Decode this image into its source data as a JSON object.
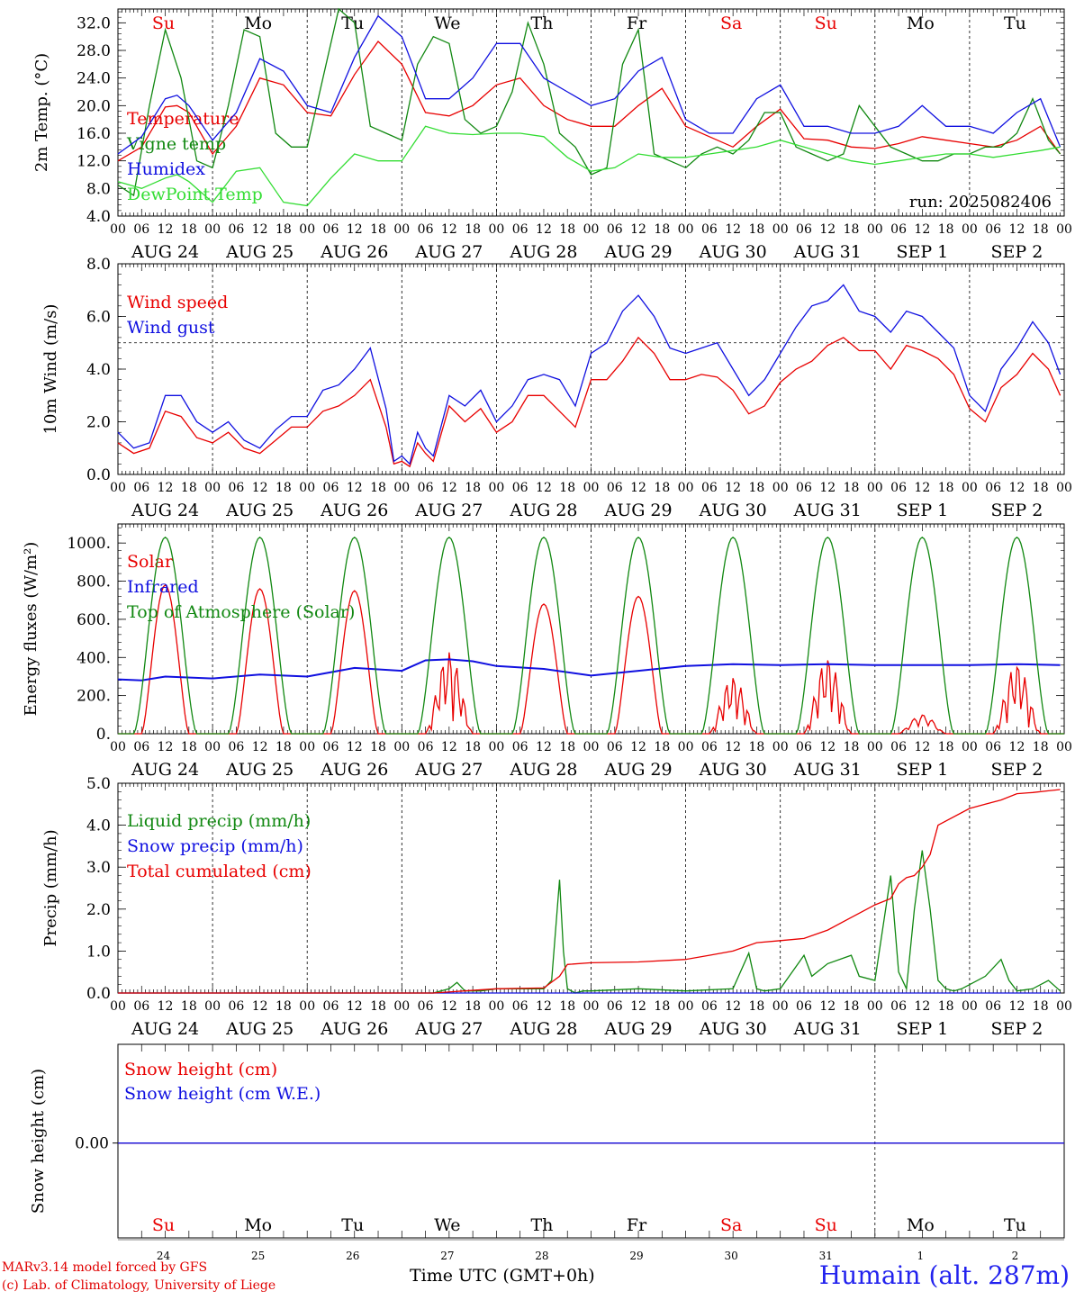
{
  "colors": {
    "red": "#e80000",
    "blue": "#1010e0",
    "green": "#118811",
    "lightgreen": "#33dd33",
    "black": "#000000"
  },
  "footer": {
    "model": "MARv3.14 model forced by GFS",
    "lab": "(c) Lab. of Climatology, University of Liege",
    "time_label": "Time UTC (GMT+0h)",
    "station": "Humain (alt. 287m)"
  },
  "axes": {
    "hour_ticks": [
      "00",
      "06",
      "12",
      "18"
    ],
    "end_tick": "00",
    "date_labels": [
      "AUG 24",
      "AUG 25",
      "AUG 26",
      "AUG 27",
      "AUG 28",
      "AUG 29",
      "AUG 30",
      "AUG 31",
      "SEP  1",
      "SEP  2"
    ],
    "weekdays": [
      "Su",
      "Mo",
      "Tu",
      "We",
      "Th",
      "Fr",
      "Sa",
      "Su",
      "Mo",
      "Tu"
    ],
    "weekday_colors": [
      "red",
      "black",
      "black",
      "black",
      "black",
      "black",
      "red",
      "red",
      "black",
      "black"
    ],
    "day_numbers": [
      "24",
      "25",
      "26",
      "27",
      "28",
      "29",
      "30",
      "31",
      "1",
      "2"
    ]
  },
  "chart_data": [
    {
      "type": "line",
      "id": "temp",
      "ylabel": "2m Temp. (°C)",
      "ylim": [
        4,
        34
      ],
      "yticks": [
        "4.0",
        "8.0",
        "12.0",
        "16.0",
        "20.0",
        "24.0",
        "28.0",
        "32.0"
      ],
      "run": "run: 2025082406",
      "x_unit": "hours since AUG 24 00 UTC",
      "series": [
        {
          "name": "Temperature",
          "color": "red",
          "x": [
            0,
            6,
            12,
            15,
            18,
            24,
            30,
            36,
            42,
            48,
            54,
            60,
            66,
            72,
            78,
            84,
            90,
            96,
            102,
            108,
            114,
            120,
            126,
            132,
            138,
            144,
            150,
            156,
            162,
            168,
            174,
            180,
            186,
            192,
            198,
            204,
            210,
            216,
            222,
            228,
            234,
            239
          ],
          "y": [
            12,
            14,
            19.8,
            20,
            19,
            13,
            17,
            24,
            23,
            19,
            18.5,
            24.5,
            29.3,
            26,
            19,
            18.5,
            20,
            23,
            24,
            20,
            18,
            17,
            17,
            20,
            22.5,
            17,
            15.5,
            14,
            17,
            19.5,
            15.2,
            15,
            14,
            13.8,
            14.5,
            15.5,
            15,
            14.5,
            14,
            15,
            17,
            13
          ]
        },
        {
          "name": "Vigne temp",
          "color": "green",
          "x": [
            0,
            4,
            8,
            12,
            16,
            20,
            24,
            28,
            32,
            36,
            40,
            44,
            48,
            52,
            56,
            60,
            64,
            68,
            72,
            76,
            80,
            84,
            88,
            92,
            96,
            100,
            104,
            108,
            112,
            116,
            120,
            124,
            128,
            132,
            136,
            140,
            144,
            148,
            152,
            156,
            160,
            164,
            168,
            172,
            176,
            180,
            184,
            188,
            192,
            196,
            200,
            204,
            208,
            212,
            216,
            220,
            224,
            228,
            232,
            236,
            239
          ],
          "y": [
            8.5,
            7,
            20,
            31,
            24,
            12,
            11,
            20,
            31,
            30,
            16,
            14,
            14,
            24,
            34,
            32,
            17,
            16,
            15,
            26,
            30,
            29,
            18,
            16,
            17,
            22,
            32,
            26,
            16,
            14,
            10,
            11,
            26,
            31,
            13,
            12,
            11,
            13,
            14,
            13,
            15,
            19,
            19,
            14,
            13,
            12,
            13,
            20,
            17,
            14,
            13,
            12,
            12,
            13,
            13,
            14,
            14,
            16,
            21,
            15,
            13
          ]
        },
        {
          "name": "Humidex",
          "color": "blue",
          "x": [
            0,
            6,
            12,
            15,
            18,
            24,
            30,
            36,
            42,
            48,
            54,
            60,
            66,
            72,
            78,
            84,
            90,
            96,
            102,
            108,
            114,
            120,
            126,
            132,
            138,
            144,
            150,
            156,
            162,
            168,
            174,
            180,
            186,
            192,
            198,
            204,
            210,
            216,
            222,
            228,
            234,
            239
          ],
          "y": [
            13,
            15.5,
            21,
            21.5,
            20,
            15,
            19,
            26.8,
            25,
            20,
            19,
            27,
            33,
            30,
            21,
            21,
            24,
            29,
            29,
            24,
            22,
            20,
            21,
            25,
            27,
            18,
            16,
            16,
            21,
            23,
            17,
            17,
            16,
            16,
            17,
            20,
            17,
            17,
            16,
            19,
            21,
            14
          ]
        },
        {
          "name": "DewPoint Temp",
          "color": "lightgreen",
          "x": [
            0,
            6,
            12,
            15,
            18,
            24,
            30,
            36,
            42,
            48,
            54,
            60,
            66,
            72,
            78,
            84,
            90,
            96,
            102,
            108,
            114,
            120,
            126,
            132,
            138,
            144,
            150,
            156,
            162,
            168,
            174,
            180,
            186,
            192,
            198,
            204,
            210,
            216,
            222,
            228,
            234,
            239
          ],
          "y": [
            9,
            8,
            9.5,
            10,
            9,
            6,
            10.5,
            11,
            6,
            5.5,
            9.5,
            13,
            12,
            12,
            17,
            16,
            15.8,
            16,
            16,
            15.5,
            12.5,
            10.5,
            11,
            13,
            12.5,
            12.5,
            13,
            13.5,
            14,
            15,
            14,
            13,
            12,
            11.5,
            12,
            12.5,
            13,
            13,
            12.5,
            13,
            13.5,
            14
          ]
        }
      ]
    },
    {
      "type": "line",
      "id": "wind",
      "ylabel": "10m Wind (m/s)",
      "ylim": [
        0,
        8
      ],
      "yticks": [
        "0.0",
        "2.0",
        "4.0",
        "6.0",
        "8.0"
      ],
      "ref_line": 5,
      "x_unit": "hours since AUG 24 00 UTC",
      "series": [
        {
          "name": "Wind speed",
          "color": "red",
          "x": [
            0,
            4,
            8,
            12,
            16,
            20,
            24,
            28,
            32,
            36,
            40,
            44,
            48,
            52,
            56,
            60,
            64,
            68,
            70,
            72,
            74,
            76,
            78,
            80,
            84,
            88,
            92,
            96,
            100,
            104,
            108,
            112,
            116,
            120,
            124,
            128,
            132,
            136,
            140,
            144,
            148,
            152,
            156,
            160,
            164,
            168,
            172,
            176,
            180,
            184,
            188,
            192,
            196,
            200,
            204,
            208,
            212,
            216,
            220,
            224,
            228,
            232,
            236,
            239
          ],
          "y": [
            1.2,
            0.8,
            1.0,
            2.4,
            2.2,
            1.4,
            1.2,
            1.6,
            1.0,
            0.8,
            1.3,
            1.8,
            1.8,
            2.4,
            2.6,
            3.0,
            3.6,
            1.8,
            0.4,
            0.5,
            0.3,
            1.2,
            0.8,
            0.5,
            2.6,
            2.0,
            2.5,
            1.6,
            2.0,
            3.0,
            3.0,
            2.4,
            1.8,
            3.6,
            3.6,
            4.3,
            5.2,
            4.6,
            3.6,
            3.6,
            3.8,
            3.7,
            3.2,
            2.3,
            2.6,
            3.5,
            4.0,
            4.3,
            4.9,
            5.2,
            4.7,
            4.7,
            4.0,
            4.9,
            4.7,
            4.4,
            3.8,
            2.5,
            2.0,
            3.3,
            3.8,
            4.6,
            4.0,
            3.0
          ]
        },
        {
          "name": "Wind gust",
          "color": "blue",
          "x": [
            0,
            4,
            8,
            12,
            16,
            20,
            24,
            28,
            32,
            36,
            40,
            44,
            48,
            52,
            56,
            60,
            64,
            68,
            70,
            72,
            74,
            76,
            78,
            80,
            84,
            88,
            92,
            96,
            100,
            104,
            108,
            112,
            116,
            120,
            124,
            128,
            132,
            136,
            140,
            144,
            148,
            152,
            156,
            160,
            164,
            168,
            172,
            176,
            180,
            184,
            188,
            192,
            196,
            200,
            204,
            208,
            212,
            216,
            220,
            224,
            228,
            232,
            236,
            239
          ],
          "y": [
            1.6,
            1.0,
            1.2,
            3.0,
            3.0,
            2.0,
            1.6,
            2.0,
            1.3,
            1.0,
            1.7,
            2.2,
            2.2,
            3.2,
            3.4,
            4.0,
            4.8,
            2.5,
            0.5,
            0.7,
            0.4,
            1.6,
            1.0,
            0.7,
            3.0,
            2.6,
            3.2,
            2.0,
            2.6,
            3.6,
            3.8,
            3.6,
            2.6,
            4.6,
            5.0,
            6.2,
            6.8,
            6.0,
            4.8,
            4.6,
            4.8,
            5.0,
            4.0,
            3.0,
            3.6,
            4.6,
            5.6,
            6.4,
            6.6,
            7.2,
            6.2,
            6.0,
            5.4,
            6.2,
            6.0,
            5.4,
            4.8,
            3.0,
            2.4,
            4.0,
            4.8,
            5.8,
            5.0,
            3.8
          ]
        }
      ]
    },
    {
      "type": "line",
      "id": "energy",
      "ylabel": "Energy fluxes (W/m²)",
      "ylim": [
        0,
        1100
      ],
      "yticks": [
        "0.",
        "200.",
        "400.",
        "600.",
        "800.",
        "1000."
      ],
      "x_unit": "hours since AUG 24 00 UTC",
      "series": [
        {
          "name": "Solar",
          "color": "red",
          "peaks": [
            {
              "day": 0,
              "max": 780,
              "shape": "smooth"
            },
            {
              "day": 1,
              "max": 760,
              "shape": "smooth"
            },
            {
              "day": 2,
              "max": 750,
              "shape": "smooth"
            },
            {
              "day": 3,
              "max": 430,
              "shape": "broken"
            },
            {
              "day": 4,
              "max": 680,
              "shape": "smooth"
            },
            {
              "day": 5,
              "max": 720,
              "shape": "smooth"
            },
            {
              "day": 6,
              "max": 300,
              "shape": "broken"
            },
            {
              "day": 7,
              "max": 400,
              "shape": "broken"
            },
            {
              "day": 8,
              "max": 100,
              "shape": "low"
            },
            {
              "day": 9,
              "max": 370,
              "shape": "broken"
            }
          ]
        },
        {
          "name": "Infrared",
          "color": "blue",
          "x": [
            0,
            6,
            12,
            24,
            36,
            48,
            60,
            72,
            78,
            84,
            90,
            96,
            108,
            120,
            132,
            144,
            156,
            168,
            180,
            192,
            204,
            216,
            228,
            239
          ],
          "y": [
            285,
            280,
            300,
            290,
            310,
            300,
            345,
            330,
            385,
            390,
            380,
            355,
            340,
            305,
            330,
            355,
            365,
            360,
            365,
            360,
            360,
            360,
            365,
            360
          ]
        },
        {
          "name": "Top of Atmosphere (Solar)",
          "color": "green",
          "toa_max": 1030
        }
      ]
    },
    {
      "type": "line",
      "id": "precip",
      "ylabel": "Precip (mm/h)",
      "ylim": [
        0,
        5
      ],
      "yticks": [
        "0.0",
        "1.0",
        "2.0",
        "3.0",
        "4.0",
        "5.0"
      ],
      "x_unit": "hours since AUG 24 00 UTC",
      "series": [
        {
          "name": "Liquid precip (mm/h)",
          "color": "green",
          "x": [
            0,
            80,
            84,
            86,
            88,
            92,
            96,
            108,
            110,
            112,
            113,
            114,
            116,
            118,
            120,
            132,
            144,
            156,
            160,
            162,
            164,
            168,
            174,
            176,
            180,
            186,
            188,
            192,
            196,
            198,
            200,
            202,
            204,
            206,
            208,
            210,
            212,
            214,
            216,
            220,
            224,
            226,
            228,
            232,
            236,
            239
          ],
          "y": [
            0,
            0,
            0.1,
            0.25,
            0.05,
            0.05,
            0.1,
            0.1,
            0.3,
            2.7,
            1.0,
            0.1,
            0,
            0.05,
            0.05,
            0.1,
            0.05,
            0.1,
            0.95,
            0.1,
            0.05,
            0.1,
            0.9,
            0.4,
            0.7,
            0.9,
            0.4,
            0.3,
            2.8,
            0.5,
            0.1,
            2.0,
            3.4,
            2.0,
            0.3,
            0.1,
            0.05,
            0.1,
            0.2,
            0.4,
            0.8,
            0.3,
            0.05,
            0.1,
            0.3,
            0.05
          ]
        },
        {
          "name": "Snow precip (mm/h)",
          "color": "blue",
          "x": [
            0,
            239
          ],
          "y": [
            0,
            0
          ]
        },
        {
          "name": "Total cumulated (cm)",
          "color": "red",
          "x": [
            0,
            80,
            96,
            108,
            112,
            114,
            120,
            132,
            144,
            150,
            156,
            162,
            168,
            174,
            180,
            186,
            192,
            196,
            198,
            200,
            202,
            204,
            206,
            208,
            216,
            220,
            224,
            228,
            232,
            236,
            239
          ],
          "y": [
            0,
            0,
            0.1,
            0.12,
            0.4,
            0.68,
            0.72,
            0.74,
            0.8,
            0.9,
            1.0,
            1.2,
            1.25,
            1.3,
            1.5,
            1.8,
            2.1,
            2.25,
            2.6,
            2.75,
            2.8,
            3.0,
            3.3,
            4.0,
            4.4,
            4.5,
            4.6,
            4.75,
            4.78,
            4.82,
            4.85
          ]
        }
      ]
    },
    {
      "type": "line",
      "id": "snow",
      "ylabel": "Snow height (cm)",
      "yticks": [
        "0.00"
      ],
      "x_unit": "hours since AUG 24 00 UTC",
      "series": [
        {
          "name": "Snow height (cm)",
          "color": "red",
          "x": [
            0,
            240
          ],
          "y": [
            0,
            0
          ]
        },
        {
          "name": "Snow height (cm W.E.)",
          "color": "blue",
          "x": [
            0,
            240
          ],
          "y": [
            0,
            0
          ]
        }
      ]
    }
  ]
}
